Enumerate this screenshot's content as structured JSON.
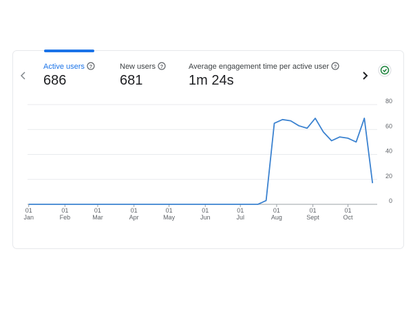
{
  "tabs": [
    {
      "label": "Active users",
      "value": "686"
    },
    {
      "label": "New users",
      "value": "681"
    },
    {
      "label": "Average engagement time per active user",
      "value": "1m 24s"
    }
  ],
  "chart_data": {
    "type": "line",
    "x": [
      0,
      7,
      14,
      21,
      28,
      35,
      42,
      49,
      56,
      63,
      70,
      77,
      84,
      91,
      98,
      105,
      112,
      119,
      126,
      133,
      140,
      147,
      154,
      161,
      168,
      175,
      182,
      189,
      196,
      203,
      210,
      217,
      224,
      231,
      238,
      245,
      252,
      259,
      266,
      273,
      280,
      287,
      294
    ],
    "series": [
      {
        "name": "Active users",
        "color": "#3b82d0",
        "values": [
          0,
          0,
          0,
          0,
          0,
          0,
          0,
          0,
          0,
          0,
          0,
          0,
          0,
          0,
          0,
          0,
          0,
          0,
          0,
          0,
          0,
          0,
          0,
          0,
          0,
          0,
          0,
          0,
          0,
          3,
          65,
          68,
          67,
          63,
          61,
          69,
          58,
          51,
          54,
          53,
          50,
          69,
          17
        ]
      }
    ],
    "xlim": [
      -1,
      298
    ],
    "xticks": [
      {
        "value": 0,
        "label": "01 Jan"
      },
      {
        "value": 31,
        "label": "01 Feb"
      },
      {
        "value": 59,
        "label": "01 Mar"
      },
      {
        "value": 90,
        "label": "01 Apr"
      },
      {
        "value": 120,
        "label": "01 May"
      },
      {
        "value": 151,
        "label": "01 Jun"
      },
      {
        "value": 181,
        "label": "01 Jul"
      },
      {
        "value": 212,
        "label": "01 Aug"
      },
      {
        "value": 243,
        "label": "01 Sept"
      },
      {
        "value": 273,
        "label": "01 Oct"
      }
    ],
    "ylim": [
      0,
      80
    ],
    "yticks": [
      0,
      20,
      40,
      60,
      80
    ],
    "grid": true
  }
}
